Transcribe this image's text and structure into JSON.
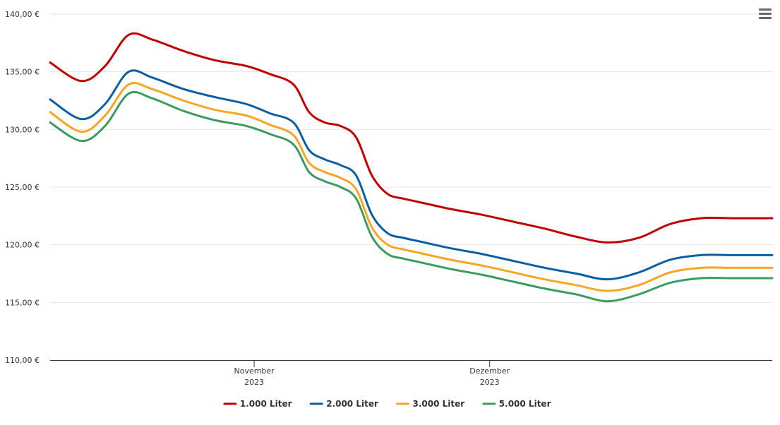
{
  "chart_data": {
    "type": "line",
    "y_ticks": [
      {
        "value": 110,
        "label": "110,00 €"
      },
      {
        "value": 115,
        "label": "115,00 €"
      },
      {
        "value": 120,
        "label": "120,00 €"
      },
      {
        "value": 125,
        "label": "125,00 €"
      },
      {
        "value": 130,
        "label": "130,00 €"
      },
      {
        "value": 135,
        "label": "135,00 €"
      },
      {
        "value": 140,
        "label": "140,00 €"
      }
    ],
    "ylim": [
      110,
      140
    ],
    "xlim": [
      "2023-10-06",
      "2024-01-06"
    ],
    "x_ticks": [
      {
        "date": "2023-11-01",
        "label_line1": "November",
        "label_line2": "2023"
      },
      {
        "date": "2023-12-01",
        "label_line1": "Dezember",
        "label_line2": "2023"
      }
    ],
    "x": [
      "2023-10-06",
      "2023-10-10",
      "2023-10-13",
      "2023-10-16",
      "2023-10-19",
      "2023-10-23",
      "2023-10-27",
      "2023-10-31",
      "2023-11-03",
      "2023-11-06",
      "2023-11-08",
      "2023-11-10",
      "2023-11-12",
      "2023-11-14",
      "2023-11-16",
      "2023-11-18",
      "2023-11-20",
      "2023-11-22",
      "2023-11-26",
      "2023-11-30",
      "2023-12-04",
      "2023-12-08",
      "2023-12-12",
      "2023-12-16",
      "2023-12-20",
      "2023-12-24",
      "2023-12-28",
      "2024-01-01",
      "2024-01-06"
    ],
    "series": [
      {
        "name": "1.000 Liter",
        "color": "#c00000",
        "values": [
          135.8,
          134.2,
          135.5,
          138.2,
          137.8,
          136.8,
          136.0,
          135.5,
          134.8,
          133.9,
          131.5,
          130.6,
          130.3,
          129.3,
          126.0,
          124.4,
          124.0,
          123.7,
          123.1,
          122.6,
          122.0,
          121.4,
          120.7,
          120.2,
          120.6,
          121.8,
          122.3,
          122.3,
          122.3
        ]
      },
      {
        "name": "2.000 Liter",
        "color": "#0a5fa3",
        "values": [
          132.6,
          130.9,
          132.2,
          135.0,
          134.5,
          133.5,
          132.8,
          132.2,
          131.4,
          130.6,
          128.2,
          127.4,
          126.9,
          126.0,
          122.6,
          121.0,
          120.6,
          120.3,
          119.7,
          119.2,
          118.6,
          118.0,
          117.5,
          117.0,
          117.6,
          118.7,
          119.1,
          119.1,
          119.1
        ]
      },
      {
        "name": "3.000 Liter",
        "color": "#f5a623",
        "values": [
          131.5,
          129.8,
          131.2,
          133.9,
          133.5,
          132.5,
          131.7,
          131.2,
          130.4,
          129.5,
          127.1,
          126.3,
          125.8,
          124.8,
          121.5,
          120.0,
          119.6,
          119.3,
          118.7,
          118.2,
          117.6,
          117.0,
          116.5,
          116.0,
          116.5,
          117.6,
          118.0,
          118.0,
          118.0
        ]
      },
      {
        "name": "5.000 Liter",
        "color": "#3a9c5e",
        "values": [
          130.6,
          129.0,
          130.3,
          133.1,
          132.7,
          131.6,
          130.8,
          130.3,
          129.6,
          128.7,
          126.3,
          125.5,
          125.0,
          124.0,
          120.7,
          119.2,
          118.8,
          118.5,
          117.9,
          117.4,
          116.8,
          116.2,
          115.7,
          115.1,
          115.7,
          116.7,
          117.1,
          117.1,
          117.1
        ]
      }
    ],
    "grid": true,
    "legend_position": "bottom"
  }
}
